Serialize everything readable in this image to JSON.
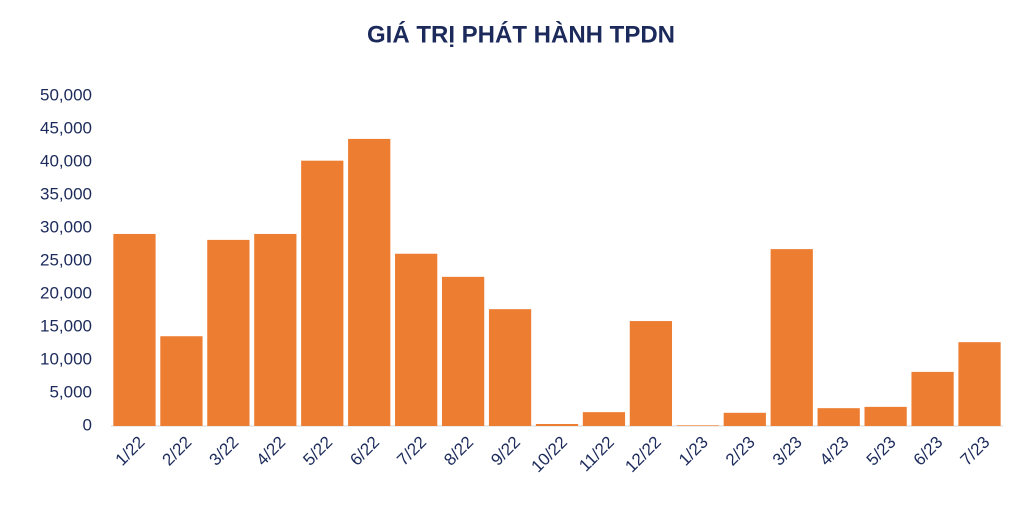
{
  "chart_data": {
    "type": "bar",
    "title": "GIÁ TRỊ PHÁT HÀNH TPDN",
    "categories": [
      "1/22",
      "2/22",
      "3/22",
      "4/22",
      "5/22",
      "6/22",
      "7/22",
      "8/22",
      "9/22",
      "10/22",
      "11/22",
      "12/22",
      "1/23",
      "2/23",
      "3/23",
      "4/23",
      "5/23",
      "6/23",
      "7/23"
    ],
    "values": [
      29100,
      13600,
      28200,
      29100,
      40200,
      43500,
      26100,
      22600,
      17700,
      300,
      2100,
      15900,
      100,
      2000,
      26800,
      2700,
      2900,
      8200,
      12700
    ],
    "color": "#ed7d31",
    "ylim": [
      0,
      50000
    ],
    "yticks": [
      0,
      {
        "value": 5000,
        "label": "5,000"
      },
      {
        "value": 10000,
        "label": "10,000"
      },
      {
        "value": 15000,
        "label": "15,000"
      },
      {
        "value": 20000,
        "label": "20,000"
      },
      {
        "value": 25000,
        "label": "25,000"
      },
      {
        "value": 30000,
        "label": "30,000"
      },
      {
        "value": 35000,
        "label": "35,000"
      },
      {
        "value": 40000,
        "label": "40,000"
      },
      {
        "value": 45000,
        "label": "45,000"
      },
      {
        "value": 50000,
        "label": "50,000"
      }
    ],
    "grid": false
  }
}
